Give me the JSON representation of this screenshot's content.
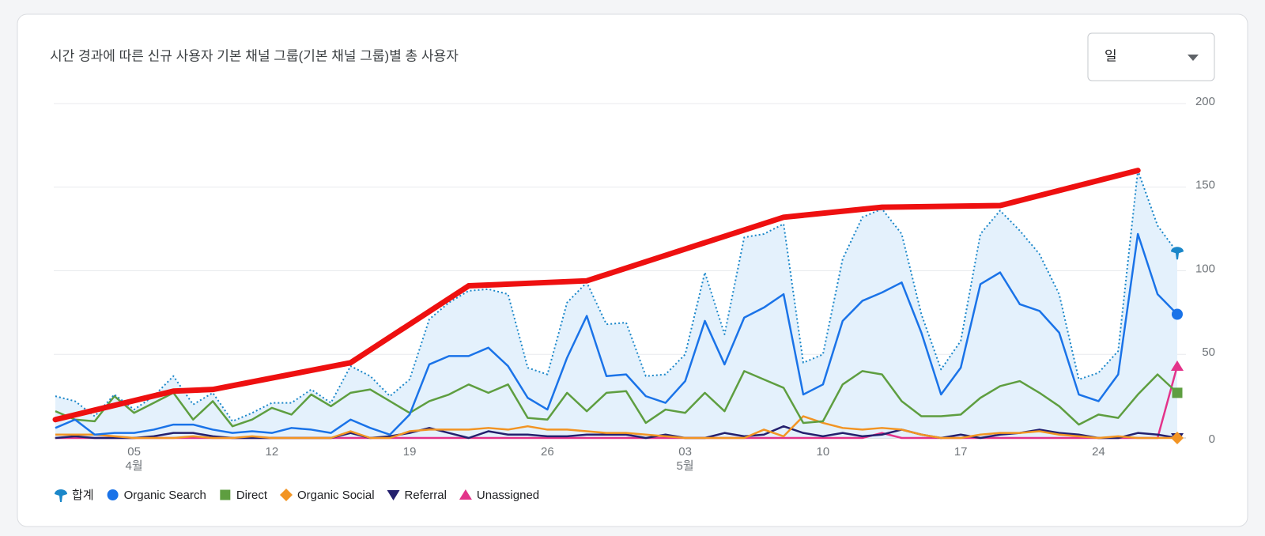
{
  "chart_data": {
    "type": "line",
    "title": "시간 경과에 따른 신규 사용자 기본 채널 그룹(기본 채널 그룹)별 총 사용자",
    "dropdown": "일",
    "categories": [
      null,
      null,
      null,
      null,
      "05",
      null,
      null,
      null,
      null,
      null,
      null,
      "12",
      null,
      null,
      null,
      null,
      null,
      null,
      "19",
      null,
      null,
      null,
      null,
      null,
      null,
      "26",
      null,
      null,
      null,
      null,
      null,
      null,
      "03",
      null,
      null,
      null,
      null,
      null,
      null,
      "10",
      null,
      null,
      null,
      null,
      null,
      null,
      "17",
      null,
      null,
      null,
      null,
      null,
      null,
      "24",
      null,
      null,
      null,
      null
    ],
    "category_sublabels": [
      null,
      null,
      null,
      null,
      "4월",
      null,
      null,
      null,
      null,
      null,
      null,
      null,
      null,
      null,
      null,
      null,
      null,
      null,
      null,
      null,
      null,
      null,
      null,
      null,
      null,
      null,
      null,
      null,
      null,
      null,
      null,
      null,
      "5월",
      null,
      null,
      null,
      null,
      null,
      null,
      null,
      null,
      null,
      null,
      null,
      null,
      null,
      null,
      null,
      null,
      null,
      null,
      null,
      null,
      null,
      null,
      null,
      null,
      null
    ],
    "ylim": [
      0,
      200
    ],
    "yticks": [
      0,
      50,
      100,
      150,
      200
    ],
    "grid": true,
    "series": [
      {
        "name": "합계",
        "color": "#1b87c9",
        "fill": "#e4f1fc",
        "style": "dotted",
        "area": true,
        "marker": "pin",
        "values": [
          25,
          22,
          13,
          26,
          17,
          25,
          37,
          20,
          27,
          10,
          15,
          21,
          21,
          29,
          21,
          43,
          37,
          25,
          35,
          71,
          81,
          88,
          89,
          86,
          42,
          38,
          81,
          93,
          68,
          69,
          37,
          38,
          50,
          99,
          62,
          120,
          122,
          128,
          45,
          50,
          107,
          132,
          137,
          122,
          74,
          41,
          58,
          122,
          136,
          124,
          110,
          86,
          35,
          39,
          52,
          160,
          127,
          111
        ]
      },
      {
        "name": "Organic Search",
        "color": "#1a73e8",
        "style": "solid",
        "marker": "circle",
        "values": [
          6,
          11,
          2,
          3,
          3,
          5,
          8,
          8,
          5,
          3,
          4,
          3,
          6,
          5,
          3,
          11,
          6,
          2,
          14,
          44,
          49,
          49,
          54,
          43,
          24,
          17,
          48,
          73,
          37,
          38,
          25,
          21,
          34,
          70,
          44,
          72,
          78,
          86,
          26,
          32,
          70,
          82,
          87,
          93,
          63,
          26,
          42,
          92,
          99,
          80,
          76,
          63,
          26,
          22,
          38,
          122,
          86,
          74
        ]
      },
      {
        "name": "Direct",
        "color": "#5e9e40",
        "style": "solid",
        "marker": "square",
        "values": [
          16,
          11,
          10,
          25,
          15,
          21,
          27,
          11,
          22,
          7,
          11,
          18,
          14,
          26,
          19,
          27,
          29,
          22,
          15,
          22,
          26,
          32,
          27,
          32,
          12,
          11,
          27,
          16,
          27,
          28,
          9,
          17,
          15,
          27,
          16,
          40,
          35,
          30,
          9,
          10,
          32,
          40,
          38,
          22,
          13,
          13,
          14,
          24,
          31,
          34,
          27,
          19,
          8,
          14,
          12,
          26,
          38,
          27
        ]
      },
      {
        "name": "Organic Social",
        "color": "#f29423",
        "style": "solid",
        "marker": "diamond",
        "values": [
          2,
          2,
          2,
          1,
          0,
          0,
          0,
          1,
          0,
          0,
          1,
          0,
          0,
          0,
          0,
          4,
          0,
          0,
          4,
          5,
          5,
          5,
          6,
          5,
          7,
          5,
          5,
          4,
          3,
          3,
          2,
          1,
          0,
          0,
          0,
          0,
          5,
          1,
          13,
          9,
          6,
          5,
          6,
          5,
          2,
          0,
          0,
          2,
          3,
          3,
          4,
          2,
          1,
          0,
          1,
          0,
          0,
          0
        ]
      },
      {
        "name": "Referral",
        "color": "#24206e",
        "style": "solid",
        "marker": "triangle-down",
        "values": [
          0,
          1,
          0,
          0,
          0,
          1,
          3,
          3,
          1,
          0,
          0,
          0,
          0,
          0,
          0,
          3,
          0,
          1,
          3,
          6,
          3,
          0,
          4,
          2,
          2,
          1,
          1,
          2,
          2,
          2,
          0,
          2,
          0,
          0,
          3,
          1,
          2,
          7,
          3,
          1,
          3,
          1,
          2,
          5,
          2,
          0,
          2,
          0,
          2,
          3,
          5,
          3,
          2,
          0,
          0,
          3,
          2,
          0
        ]
      },
      {
        "name": "Unassigned",
        "color": "#e3338a",
        "style": "solid",
        "marker": "triangle-up",
        "values": [
          0,
          0,
          0,
          0,
          0,
          0,
          0,
          0,
          0,
          0,
          0,
          0,
          0,
          0,
          0,
          0,
          0,
          0,
          0,
          0,
          0,
          0,
          0,
          0,
          0,
          0,
          0,
          0,
          0,
          0,
          0,
          0,
          0,
          0,
          0,
          0,
          0,
          0,
          0,
          0,
          0,
          0,
          3,
          0,
          0,
          0,
          0,
          0,
          0,
          0,
          0,
          0,
          0,
          0,
          0,
          0,
          0,
          43
        ]
      }
    ],
    "overlay": {
      "color": "#ee1010",
      "x": [
        0,
        6,
        8,
        15,
        21,
        27,
        37,
        42,
        48,
        55
      ],
      "values": [
        11,
        28,
        29,
        45,
        91,
        94,
        132,
        138,
        139,
        160
      ]
    }
  }
}
